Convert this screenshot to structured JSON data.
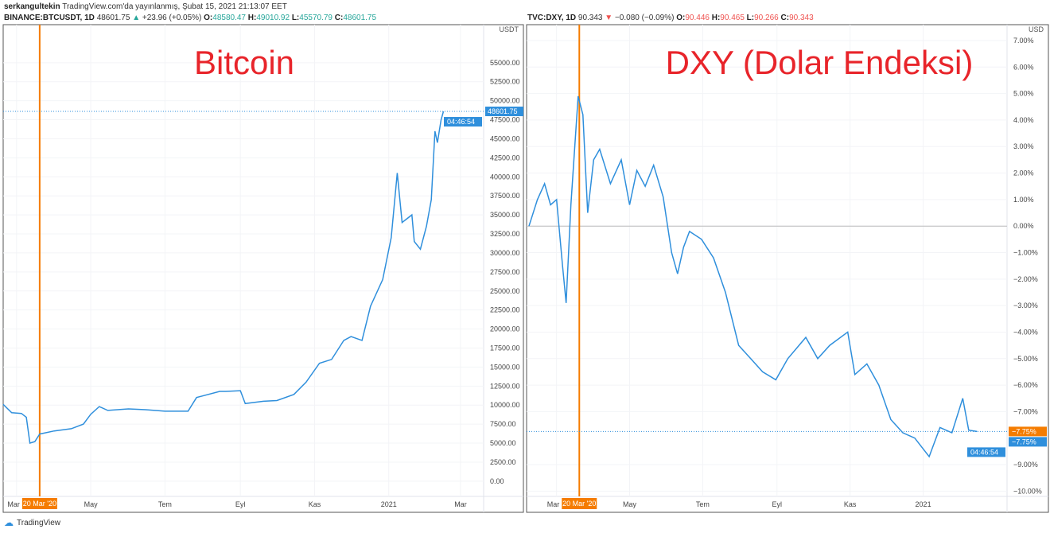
{
  "header": {
    "author": "serkangultekin",
    "published": "TradingView.com'da yayınlanmış, Şubat 15, 2021 21:13:07 EET"
  },
  "footer": {
    "brand": "TradingView"
  },
  "colors": {
    "line": "#2f8fdc",
    "marker": "#f57c00",
    "up": "#26a69a",
    "down": "#ef5350"
  },
  "chart_data": [
    {
      "type": "line",
      "title": "Bitcoin",
      "symbol": "BINANCE:BTCUSDT, 1D",
      "last": "48601.75",
      "change": "+23.96 (+0.05%)",
      "direction": "up",
      "ohlc": {
        "O": "48580.47",
        "H": "49010.92",
        "L": "45570.79",
        "C": "48601.75"
      },
      "currency": "USDT",
      "ylim": [
        -2000,
        60000
      ],
      "yticks": [
        "0.00",
        "2500.00",
        "5000.00",
        "7500.00",
        "10000.00",
        "12500.00",
        "15000.00",
        "17500.00",
        "20000.00",
        "22500.00",
        "25000.00",
        "27500.00",
        "30000.00",
        "32500.00",
        "35000.00",
        "37500.00",
        "40000.00",
        "42500.00",
        "45000.00",
        "47500.00",
        "50000.00",
        "52500.00",
        "55000.00"
      ],
      "xticks": [
        {
          "label": "Mar",
          "date": "2020-03-01"
        },
        {
          "label": "May",
          "date": "2020-05-01"
        },
        {
          "label": "Tem",
          "date": "2020-07-01"
        },
        {
          "label": "Eyl",
          "date": "2020-09-01"
        },
        {
          "label": "Kas",
          "date": "2020-11-01"
        },
        {
          "label": "2021",
          "date": "2021-01-01"
        },
        {
          "label": "Mar",
          "date": "2021-03-01"
        }
      ],
      "xrange": [
        "2020-02-19",
        "2021-03-20"
      ],
      "marker": {
        "label": "20 Mar '20",
        "date": "2020-03-20"
      },
      "price_label": "48601.75",
      "countdown": "04:46:54",
      "points": [
        [
          "2020-02-19",
          10100
        ],
        [
          "2020-02-26",
          9000
        ],
        [
          "2020-03-05",
          8900
        ],
        [
          "2020-03-09",
          8400
        ],
        [
          "2020-03-12",
          5000
        ],
        [
          "2020-03-16",
          5200
        ],
        [
          "2020-03-20",
          6200
        ],
        [
          "2020-04-01",
          6600
        ],
        [
          "2020-04-15",
          6900
        ],
        [
          "2020-04-25",
          7500
        ],
        [
          "2020-05-01",
          8800
        ],
        [
          "2020-05-08",
          9800
        ],
        [
          "2020-05-15",
          9300
        ],
        [
          "2020-06-01",
          9500
        ],
        [
          "2020-06-15",
          9400
        ],
        [
          "2020-07-01",
          9200
        ],
        [
          "2020-07-20",
          9200
        ],
        [
          "2020-07-27",
          11000
        ],
        [
          "2020-08-15",
          11800
        ],
        [
          "2020-08-20",
          11800
        ],
        [
          "2020-09-01",
          11900
        ],
        [
          "2020-09-05",
          10200
        ],
        [
          "2020-09-20",
          10500
        ],
        [
          "2020-10-01",
          10600
        ],
        [
          "2020-10-15",
          11400
        ],
        [
          "2020-10-25",
          13000
        ],
        [
          "2020-11-05",
          15500
        ],
        [
          "2020-11-15",
          16000
        ],
        [
          "2020-11-25",
          18500
        ],
        [
          "2020-12-01",
          19000
        ],
        [
          "2020-12-10",
          18500
        ],
        [
          "2020-12-17",
          23000
        ],
        [
          "2020-12-27",
          26500
        ],
        [
          "2021-01-03",
          32000
        ],
        [
          "2021-01-08",
          40500
        ],
        [
          "2021-01-12",
          34000
        ],
        [
          "2021-01-20",
          35000
        ],
        [
          "2021-01-22",
          31500
        ],
        [
          "2021-01-27",
          30500
        ],
        [
          "2021-02-01",
          33500
        ],
        [
          "2021-02-05",
          37000
        ],
        [
          "2021-02-08",
          46000
        ],
        [
          "2021-02-10",
          44500
        ],
        [
          "2021-02-13",
          47500
        ],
        [
          "2021-02-15",
          48600
        ]
      ]
    },
    {
      "type": "line",
      "title": "DXY (Dolar Endeksi)",
      "symbol": "TVC:DXY, 1D",
      "last": "90.343",
      "change": "−0.080 (−0.09%)",
      "direction": "down",
      "ohlc": {
        "O": "90.446",
        "H": "90.465",
        "L": "90.266",
        "C": "90.343"
      },
      "currency": "USD",
      "ylim": [
        -10.2,
        7.6
      ],
      "yticks": [
        "7.00%",
        "6.00%",
        "5.00%",
        "4.00%",
        "3.00%",
        "2.00%",
        "1.00%",
        "0.00%",
        "−1.00%",
        "−2.00%",
        "−3.00%",
        "−4.00%",
        "−5.00%",
        "−6.00%",
        "−7.00%",
        "−9.00%",
        "−10.00%"
      ],
      "ytick_values": [
        7,
        6,
        5,
        4,
        3,
        2,
        1,
        0,
        -1,
        -2,
        -3,
        -4,
        -5,
        -6,
        -7,
        -9,
        -10
      ],
      "xticks": [
        {
          "label": "Mar",
          "date": "2020-03-01"
        },
        {
          "label": "May",
          "date": "2020-05-01"
        },
        {
          "label": "Tem",
          "date": "2020-07-01"
        },
        {
          "label": "Eyl",
          "date": "2020-09-01"
        },
        {
          "label": "Kas",
          "date": "2020-11-01"
        },
        {
          "label": "2021",
          "date": "2021-01-01"
        }
      ],
      "xrange": [
        "2020-02-05",
        "2021-03-12"
      ],
      "marker": {
        "label": "20 Mar '20",
        "date": "2020-03-20"
      },
      "price_label": "−7.75%",
      "price_label2": "−7.75%",
      "countdown": "04:46:54",
      "points": [
        [
          "2020-02-07",
          0
        ],
        [
          "2020-02-14",
          1.0
        ],
        [
          "2020-02-20",
          1.6
        ],
        [
          "2020-02-25",
          0.8
        ],
        [
          "2020-03-01",
          1.0
        ],
        [
          "2020-03-06",
          -1.5
        ],
        [
          "2020-03-09",
          -2.9
        ],
        [
          "2020-03-13",
          0.8
        ],
        [
          "2020-03-19",
          4.9
        ],
        [
          "2020-03-23",
          4.2
        ],
        [
          "2020-03-27",
          0.5
        ],
        [
          "2020-04-01",
          2.5
        ],
        [
          "2020-04-06",
          2.9
        ],
        [
          "2020-04-15",
          1.6
        ],
        [
          "2020-04-24",
          2.5
        ],
        [
          "2020-05-01",
          0.8
        ],
        [
          "2020-05-07",
          2.1
        ],
        [
          "2020-05-14",
          1.5
        ],
        [
          "2020-05-21",
          2.3
        ],
        [
          "2020-05-29",
          1.1
        ],
        [
          "2020-06-05",
          -1.0
        ],
        [
          "2020-06-10",
          -1.8
        ],
        [
          "2020-06-15",
          -0.8
        ],
        [
          "2020-06-20",
          -0.2
        ],
        [
          "2020-06-30",
          -0.5
        ],
        [
          "2020-07-10",
          -1.2
        ],
        [
          "2020-07-20",
          -2.5
        ],
        [
          "2020-07-31",
          -4.5
        ],
        [
          "2020-08-10",
          -5.0
        ],
        [
          "2020-08-20",
          -5.5
        ],
        [
          "2020-08-31",
          -5.8
        ],
        [
          "2020-09-10",
          -5.0
        ],
        [
          "2020-09-25",
          -4.2
        ],
        [
          "2020-10-05",
          -5.0
        ],
        [
          "2020-10-15",
          -4.5
        ],
        [
          "2020-10-30",
          -4.0
        ],
        [
          "2020-11-05",
          -5.6
        ],
        [
          "2020-11-15",
          -5.2
        ],
        [
          "2020-11-25",
          -6.0
        ],
        [
          "2020-12-05",
          -7.3
        ],
        [
          "2020-12-15",
          -7.8
        ],
        [
          "2020-12-25",
          -8.0
        ],
        [
          "2021-01-06",
          -8.7
        ],
        [
          "2021-01-15",
          -7.6
        ],
        [
          "2021-01-25",
          -7.8
        ],
        [
          "2021-02-03",
          -6.5
        ],
        [
          "2021-02-08",
          -7.7
        ],
        [
          "2021-02-15",
          -7.75
        ]
      ]
    }
  ]
}
